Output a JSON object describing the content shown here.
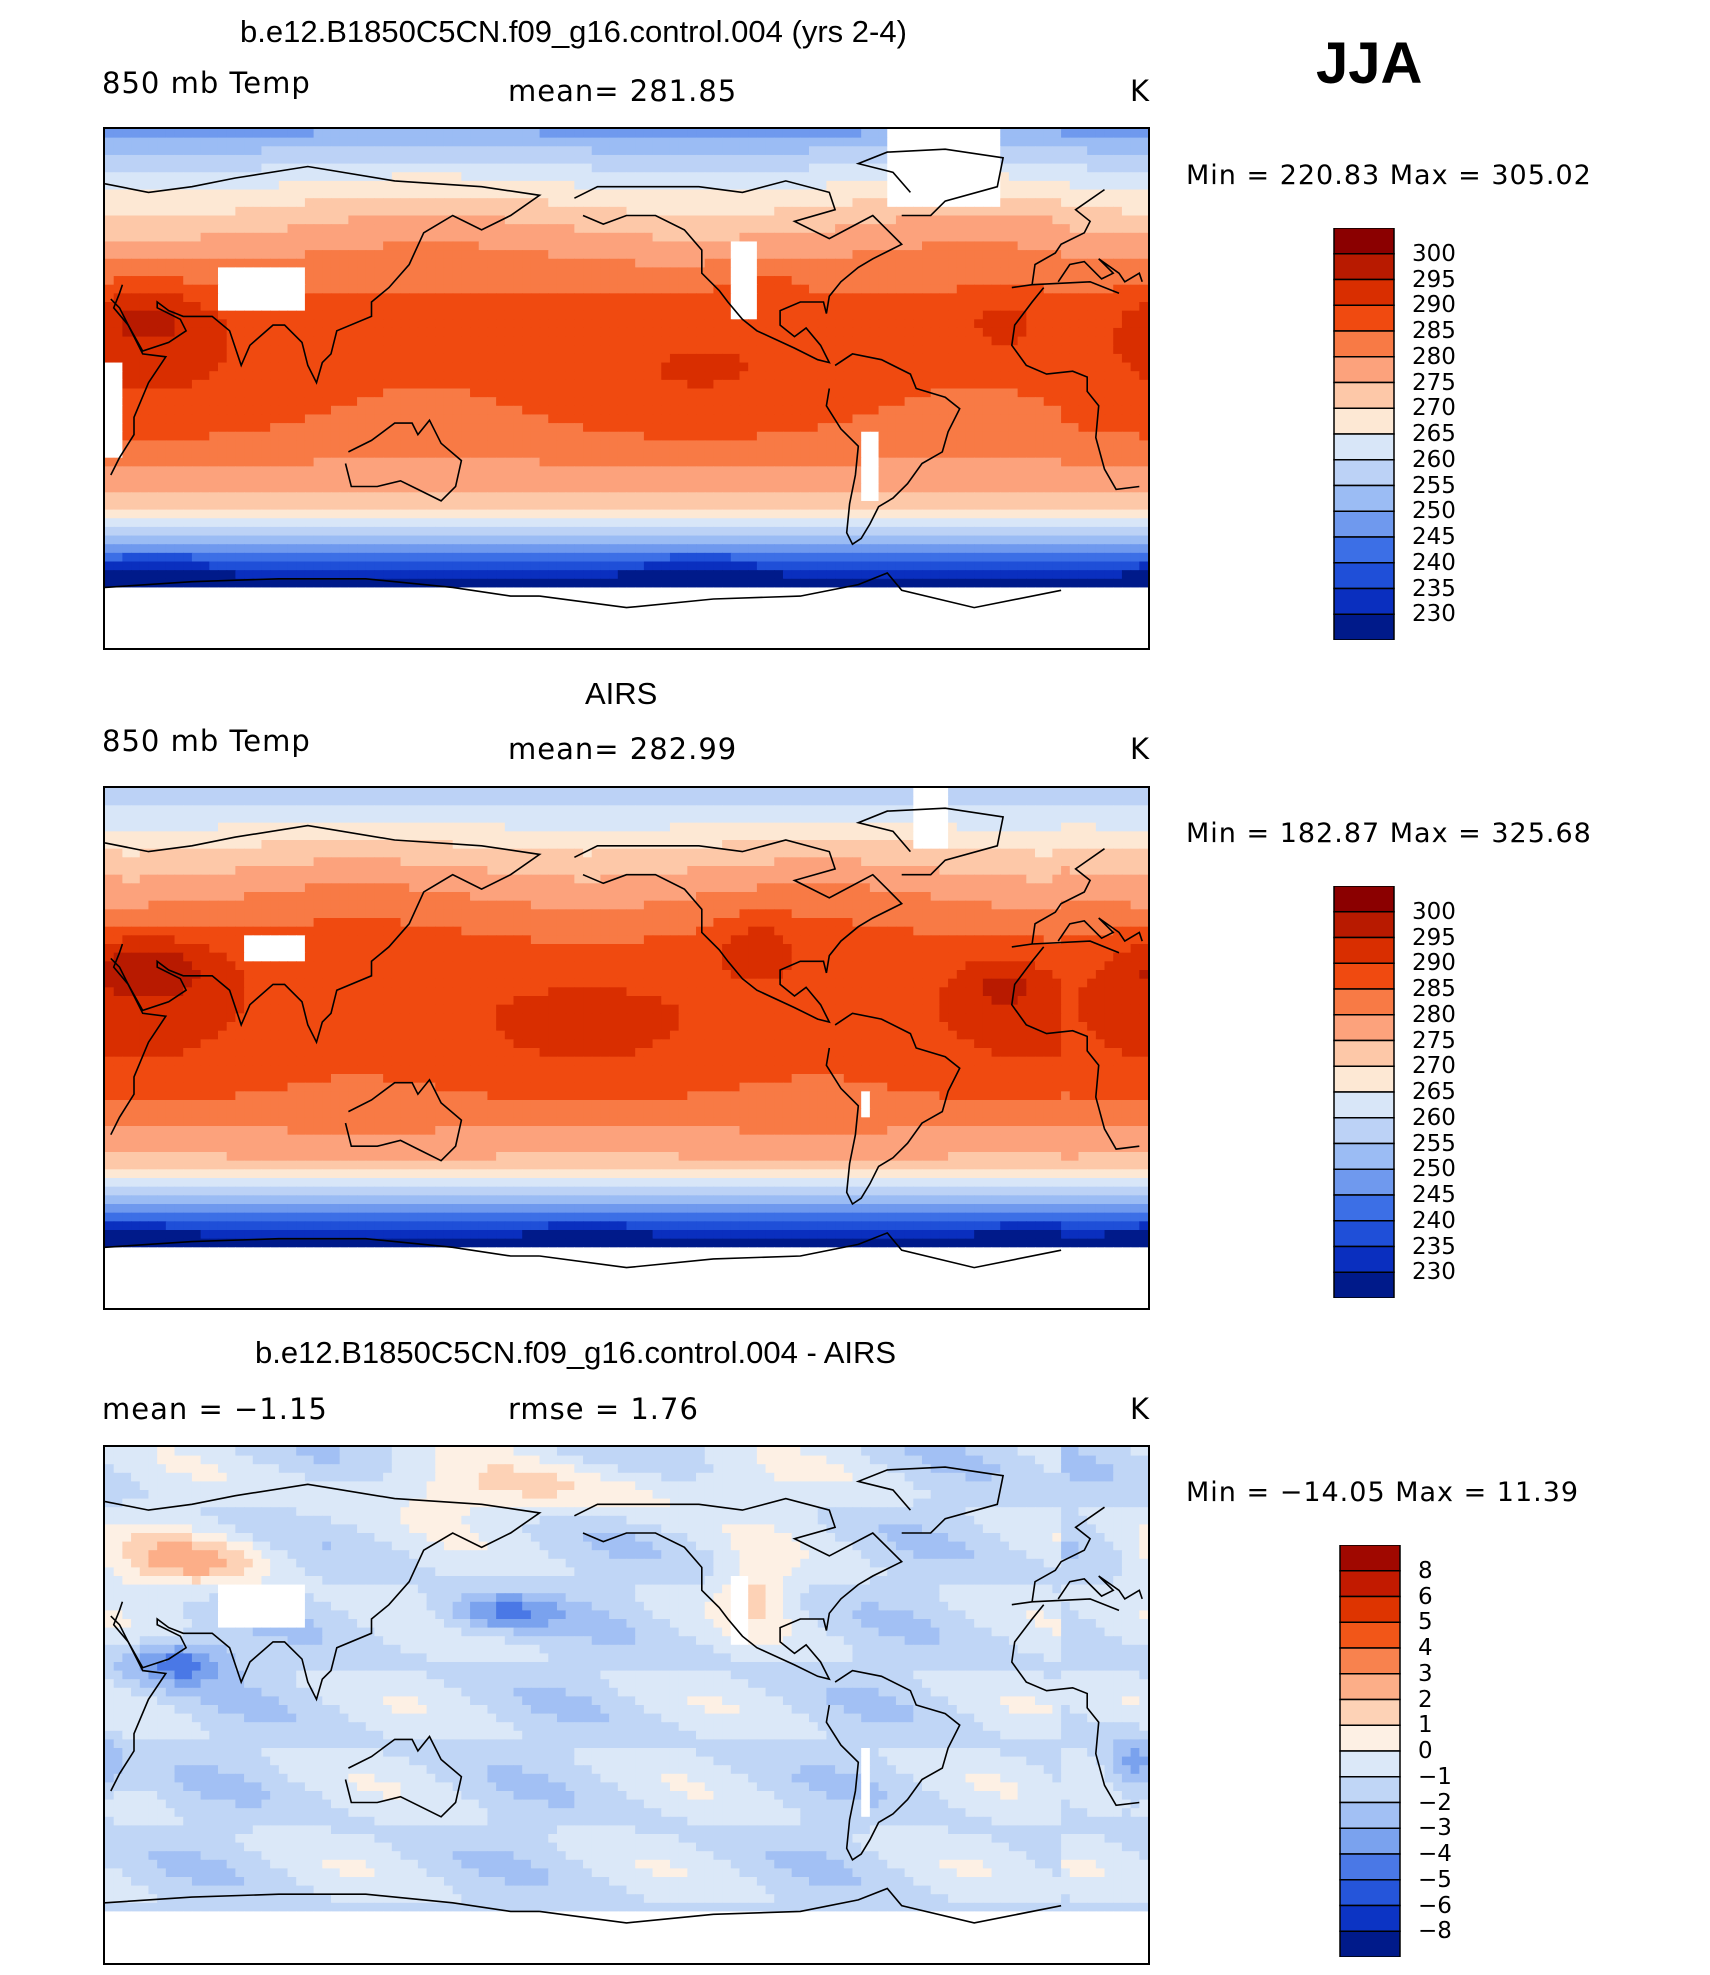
{
  "season": "JJA",
  "panels": [
    {
      "title": "b.e12.B1850C5CN.f09_g16.control.004 (yrs 2-4)",
      "left_label": "850 mb Temp",
      "center_label": "mean=  281.85",
      "units": "K",
      "minmax": "Min  =  220.83  Max  =  305.02",
      "colorbar_labels": [
        "300",
        "295",
        "290",
        "285",
        "280",
        "275",
        "270",
        "265",
        "260",
        "255",
        "250",
        "245",
        "240",
        "235",
        "230"
      ],
      "colorbar_colors": [
        "#8b0000",
        "#b81a00",
        "#d92e00",
        "#f04a10",
        "#f87a45",
        "#fca27c",
        "#fdc8a8",
        "#fde8d4",
        "#d8e6f8",
        "#bcd2f6",
        "#9bbcf4",
        "#6f99ee",
        "#3c6fe6",
        "#1f4fd8",
        "#0a2fbf",
        "#001a8a"
      ],
      "field": "model"
    },
    {
      "title": "AIRS",
      "left_label": "850 mb Temp",
      "center_label": "mean=  282.99",
      "units": "K",
      "minmax": "Min  =  182.87  Max  =  325.68",
      "colorbar_labels": [
        "300",
        "295",
        "290",
        "285",
        "280",
        "275",
        "270",
        "265",
        "260",
        "255",
        "250",
        "245",
        "240",
        "235",
        "230"
      ],
      "colorbar_colors": [
        "#8b0000",
        "#b81a00",
        "#d92e00",
        "#f04a10",
        "#f87a45",
        "#fca27c",
        "#fdc8a8",
        "#fde8d4",
        "#d8e6f8",
        "#bcd2f6",
        "#9bbcf4",
        "#6f99ee",
        "#3c6fe6",
        "#1f4fd8",
        "#0a2fbf",
        "#001a8a"
      ],
      "field": "obs"
    },
    {
      "title": "b.e12.B1850C5CN.f09_g16.control.004 - AIRS",
      "left_label": "mean  =    −1.15",
      "center_label": "rmse  =     1.76",
      "units": "K",
      "minmax": "Min  =  −14.05  Max  =    11.39",
      "colorbar_labels": [
        "8",
        "6",
        "5",
        "4",
        "3",
        "2",
        "1",
        "0",
        "−1",
        "−2",
        "−3",
        "−4",
        "−5",
        "−6",
        "−8"
      ],
      "colorbar_colors": [
        "#a00800",
        "#c21a00",
        "#de3400",
        "#f25618",
        "#f8824e",
        "#fcae88",
        "#fdd2b6",
        "#fdf0e4",
        "#dbe8f8",
        "#c0d6f6",
        "#a2c0f4",
        "#7aa2ee",
        "#4a78e6",
        "#2555da",
        "#0c34c4",
        "#001a8a"
      ],
      "field": "diff"
    }
  ],
  "chart_data": {
    "type": "heatmap",
    "title": "850 mb Temp, JJA",
    "panels": [
      {
        "name": "model",
        "mean": 281.85,
        "min": 220.83,
        "max": 305.02,
        "units": "K",
        "levels": [
          230,
          235,
          240,
          245,
          250,
          255,
          260,
          265,
          270,
          275,
          280,
          285,
          290,
          295,
          300
        ]
      },
      {
        "name": "AIRS",
        "mean": 282.99,
        "min": 182.87,
        "max": 325.68,
        "units": "K",
        "levels": [
          230,
          235,
          240,
          245,
          250,
          255,
          260,
          265,
          270,
          275,
          280,
          285,
          290,
          295,
          300
        ]
      },
      {
        "name": "model - AIRS",
        "mean": -1.15,
        "rmse": 1.76,
        "min": -14.05,
        "max": 11.39,
        "units": "K",
        "levels": [
          -8,
          -6,
          -5,
          -4,
          -3,
          -2,
          -1,
          0,
          1,
          2,
          3,
          4,
          5,
          6,
          8
        ]
      }
    ]
  }
}
